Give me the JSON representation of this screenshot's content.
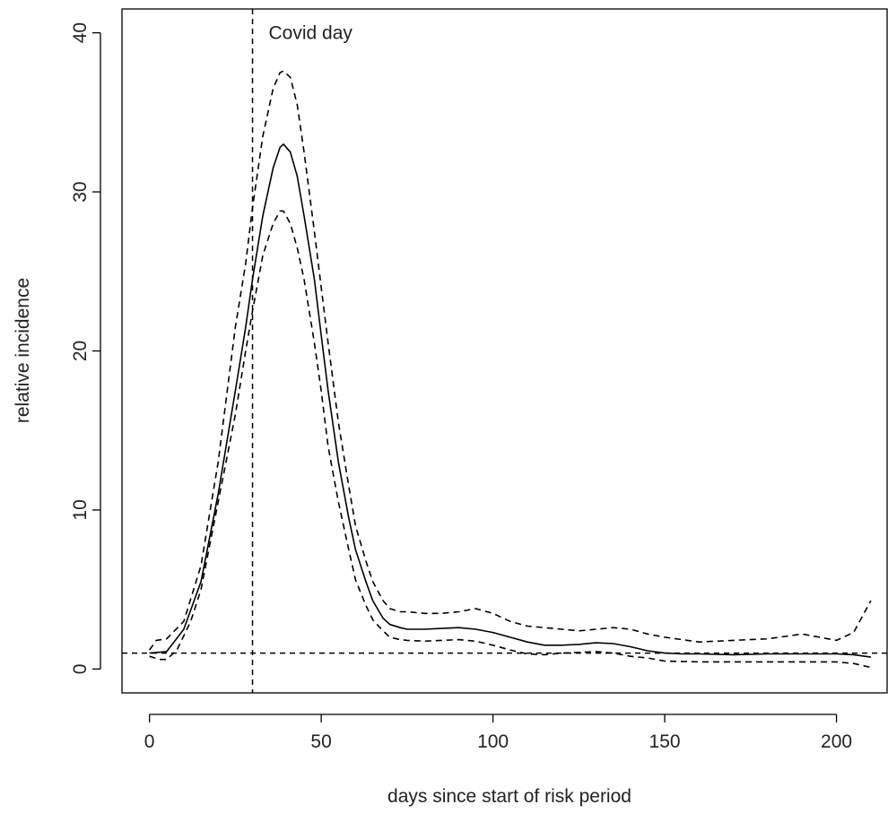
{
  "chart_data": {
    "type": "line",
    "xlabel": "days since start of risk period",
    "ylabel": "relative incidence",
    "xlim": [
      -8,
      215
    ],
    "ylim": [
      -1.5,
      41.5
    ],
    "xticks": [
      0,
      50,
      100,
      150,
      200
    ],
    "yticks": [
      0,
      10,
      20,
      30,
      40
    ],
    "grid": false,
    "legend": "none",
    "colors": {
      "line": "#000000",
      "axis": "#000000",
      "text": "#222222"
    },
    "annotations": [
      {
        "text": "Covid day",
        "x": 30,
        "y": 40
      }
    ],
    "reference_lines": [
      {
        "orientation": "vertical",
        "x": 30,
        "style": "dashed"
      },
      {
        "orientation": "horizontal",
        "y": 1,
        "style": "dashed"
      }
    ],
    "series": [
      {
        "style": "solid",
        "x": [
          0,
          5,
          10,
          15,
          20,
          25,
          28,
          30,
          33,
          36,
          38,
          39,
          41,
          43,
          45,
          48,
          50,
          52,
          55,
          58,
          60,
          63,
          65,
          68,
          70,
          73,
          75,
          80,
          85,
          90,
          95,
          100,
          105,
          110,
          115,
          120,
          125,
          130,
          135,
          140,
          145,
          150,
          155,
          160,
          170,
          180,
          190,
          200,
          205,
          210
        ],
        "y": [
          1.0,
          1.1,
          2.5,
          5.5,
          11.0,
          17.5,
          21.5,
          24.5,
          28.5,
          31.5,
          32.8,
          33.0,
          32.5,
          31.0,
          28.5,
          24.5,
          21.0,
          17.5,
          13.0,
          9.5,
          7.5,
          5.5,
          4.3,
          3.2,
          2.8,
          2.6,
          2.5,
          2.5,
          2.55,
          2.6,
          2.5,
          2.3,
          2.0,
          1.7,
          1.5,
          1.5,
          1.55,
          1.65,
          1.6,
          1.4,
          1.15,
          1.0,
          0.95,
          0.95,
          0.9,
          0.95,
          0.95,
          0.95,
          0.9,
          0.75
        ]
      },
      {
        "style": "dashed",
        "x": [
          0,
          2,
          5,
          10,
          15,
          20,
          25,
          28,
          30,
          33,
          36,
          38,
          39,
          41,
          43,
          45,
          48,
          50,
          52,
          55,
          58,
          60,
          63,
          65,
          68,
          70,
          73,
          75,
          80,
          85,
          90,
          95,
          100,
          105,
          110,
          115,
          120,
          125,
          130,
          135,
          140,
          145,
          150,
          160,
          170,
          180,
          190,
          195,
          200,
          205,
          210
        ],
        "y": [
          1.2,
          1.8,
          1.9,
          3.0,
          6.5,
          13.0,
          21.5,
          25.5,
          29.0,
          33.5,
          36.5,
          37.5,
          37.6,
          37.2,
          35.5,
          32.5,
          27.5,
          24.0,
          20.5,
          15.5,
          11.5,
          9.0,
          6.8,
          5.5,
          4.3,
          3.8,
          3.6,
          3.6,
          3.5,
          3.5,
          3.6,
          3.8,
          3.5,
          3.0,
          2.7,
          2.6,
          2.5,
          2.4,
          2.5,
          2.6,
          2.5,
          2.2,
          2.0,
          1.7,
          1.8,
          1.9,
          2.2,
          2.0,
          1.8,
          2.3,
          4.3
        ]
      },
      {
        "style": "dashed",
        "x": [
          0,
          3,
          5,
          8,
          12,
          15,
          20,
          25,
          28,
          30,
          33,
          36,
          38,
          39,
          41,
          43,
          45,
          48,
          50,
          52,
          55,
          58,
          60,
          63,
          65,
          68,
          70,
          73,
          75,
          80,
          85,
          90,
          95,
          100,
          105,
          110,
          115,
          120,
          125,
          130,
          135,
          140,
          145,
          150,
          160,
          170,
          180,
          190,
          200,
          205,
          210
        ],
        "y": [
          0.8,
          0.6,
          0.6,
          1.2,
          3.0,
          5.0,
          10.5,
          16.0,
          20.0,
          22.5,
          26.0,
          28.0,
          28.8,
          28.8,
          28.0,
          26.5,
          24.5,
          20.5,
          17.5,
          14.0,
          10.5,
          7.5,
          5.6,
          4.0,
          3.1,
          2.4,
          2.0,
          1.85,
          1.8,
          1.75,
          1.8,
          1.85,
          1.75,
          1.5,
          1.2,
          0.95,
          0.9,
          1.0,
          1.05,
          1.1,
          1.0,
          0.8,
          0.7,
          0.5,
          0.45,
          0.45,
          0.45,
          0.45,
          0.45,
          0.35,
          0.1
        ]
      }
    ]
  }
}
